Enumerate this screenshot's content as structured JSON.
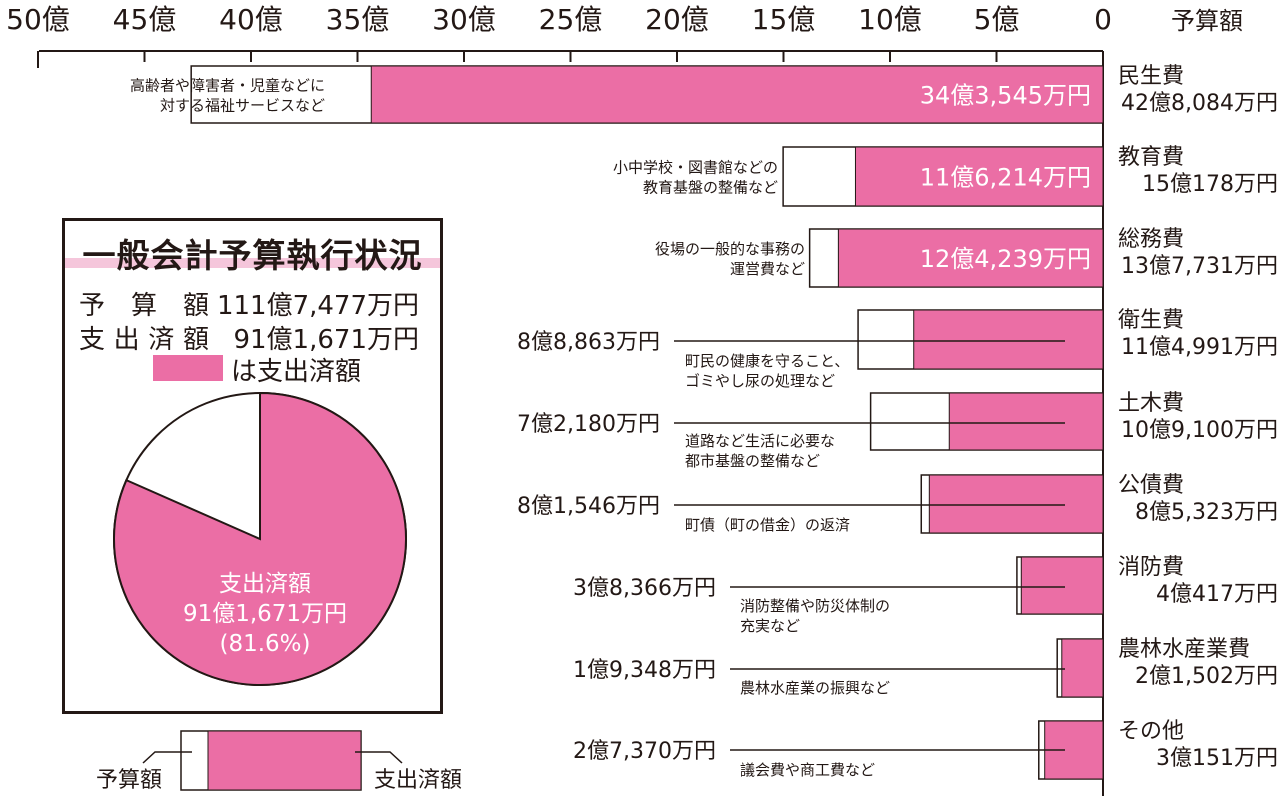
{
  "axis": {
    "ticks": [
      "50億",
      "45億",
      "40億",
      "35億",
      "30億",
      "25億",
      "20億",
      "15億",
      "10億",
      "5億",
      "0"
    ],
    "tick_values": [
      50,
      45,
      40,
      35,
      30,
      25,
      20,
      15,
      10,
      5,
      0
    ],
    "header": "予算額"
  },
  "summary": {
    "title": "一般会計予算執行状況",
    "budget_label": "予 算 額",
    "budget_value": "111億7,477万円",
    "spent_label": "支出済額",
    "spent_value": "91億1,671万円",
    "legend_text": "は支出済額",
    "pie_line1": "支出済額",
    "pie_line2": "91億1,671万円",
    "pie_line3": "(81.6%)",
    "spent_fraction": 0.816
  },
  "legend_sample": {
    "left_label": "予算額",
    "right_label": "支出済額"
  },
  "colors": {
    "spent": "#eb6ea5",
    "budget": "#ffffff",
    "line": "#231815",
    "title_underline": "#f5c6db"
  },
  "chart_data": {
    "type": "bar",
    "orientation": "horizontal",
    "xlim": [
      0,
      50
    ],
    "unit": "億円",
    "categories": [
      {
        "name": "民生費",
        "budget_label": "42億8,084万円",
        "spent_label": "34億3,545万円",
        "desc": [
          "高齢者や障害者・児童などに",
          "対する福祉サービスなど"
        ],
        "budget": 42.8084,
        "spent": 34.3545
      },
      {
        "name": "教育費",
        "budget_label": "15億178万円",
        "spent_label": "11億6,214万円",
        "desc": [
          "小中学校・図書館などの",
          "教育基盤の整備など"
        ],
        "budget": 15.0178,
        "spent": 11.6214
      },
      {
        "name": "総務費",
        "budget_label": "13億7,731万円",
        "spent_label": "12億4,239万円",
        "desc": [
          "役場の一般的な事務の",
          "運営費など"
        ],
        "budget": 13.7731,
        "spent": 12.4239
      },
      {
        "name": "衛生費",
        "budget_label": "11億4,991万円",
        "spent_label": "8億8,863万円",
        "desc": [
          "町民の健康を守ること、",
          "ゴミやし尿の処理など"
        ],
        "budget": 11.4991,
        "spent": 8.8863
      },
      {
        "name": "土木費",
        "budget_label": "10億9,100万円",
        "spent_label": "7億2,180万円",
        "desc": [
          "道路など生活に必要な",
          "都市基盤の整備など"
        ],
        "budget": 10.91,
        "spent": 7.218
      },
      {
        "name": "公債費",
        "budget_label": "8億5,323万円",
        "spent_label": "8億1,546万円",
        "desc": [
          "町債（町の借金）の返済"
        ],
        "budget": 8.5323,
        "spent": 8.1546
      },
      {
        "name": "消防費",
        "budget_label": "4億417万円",
        "spent_label": "3億8,366万円",
        "desc": [
          "消防整備や防災体制の",
          "充実など"
        ],
        "budget": 4.0417,
        "spent": 3.8366
      },
      {
        "name": "農林水産業費",
        "budget_label": "2億1,502万円",
        "spent_label": "1億9,348万円",
        "desc": [
          "農林水産業の振興など"
        ],
        "budget": 2.1502,
        "spent": 1.9348
      },
      {
        "name": "その他",
        "budget_label": "3億151万円",
        "spent_label": "2億7,370万円",
        "desc": [
          "議会費や商工費など"
        ],
        "budget": 3.0151,
        "spent": 2.737
      }
    ]
  }
}
